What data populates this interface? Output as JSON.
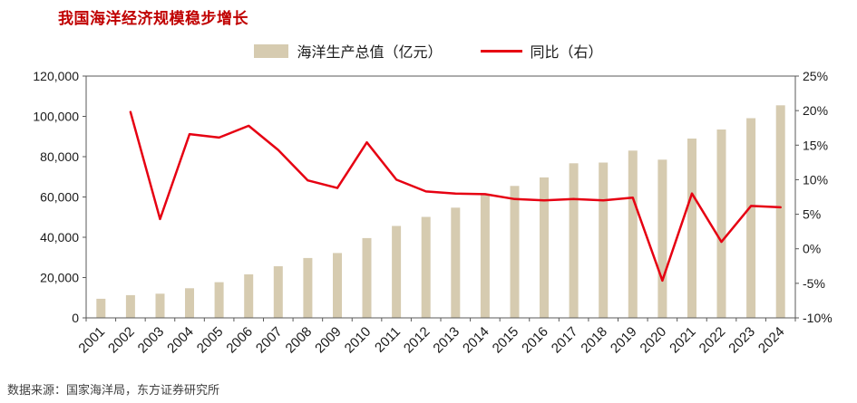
{
  "title": "我国海洋经济规模稳步增长",
  "source": "数据来源：国家海洋局，东方证券研究所",
  "colors": {
    "bar": "#d6cbb0",
    "line": "#e60012",
    "title": "#c00000",
    "axis_line": "#595959",
    "axis_text": "#1a1a1a"
  },
  "legend": [
    {
      "label": "海洋生产总值（亿元）",
      "type": "bar"
    },
    {
      "label": "同比（右）",
      "type": "line"
    }
  ],
  "chart_data": {
    "type": "bar+line",
    "title": "我国海洋经济规模稳步增长",
    "categories": [
      "2001",
      "2002",
      "2003",
      "2004",
      "2005",
      "2006",
      "2007",
      "2008",
      "2009",
      "2010",
      "2011",
      "2012",
      "2013",
      "2014",
      "2015",
      "2016",
      "2017",
      "2018",
      "2019",
      "2020",
      "2021",
      "2022",
      "2023",
      "2024"
    ],
    "series": [
      {
        "name": "海洋生产总值（亿元）",
        "type": "bar",
        "axis": "left",
        "values": [
          9500,
          11300,
          12000,
          14700,
          17700,
          21600,
          25600,
          29700,
          32200,
          39600,
          45600,
          50100,
          54700,
          61000,
          65500,
          69700,
          76700,
          77100,
          83000,
          78500,
          89000,
          93500,
          99100,
          105500
        ]
      },
      {
        "name": "同比（右）",
        "type": "line",
        "axis": "right",
        "values": [
          null,
          19.8,
          4.3,
          16.6,
          16.1,
          17.8,
          14.3,
          9.9,
          8.8,
          15.4,
          10.0,
          8.3,
          8.0,
          7.9,
          7.2,
          7.0,
          7.2,
          7.0,
          7.4,
          -4.6,
          8.0,
          1.0,
          6.2,
          6.0
        ]
      }
    ],
    "left_axis": {
      "min": 0,
      "max": 120000,
      "tick_values": [
        0,
        20000,
        40000,
        60000,
        80000,
        100000,
        120000
      ],
      "tick_labels": [
        "0",
        "20,000",
        "40,000",
        "60,000",
        "80,000",
        "100,000",
        "120,000"
      ]
    },
    "right_axis": {
      "min": -10,
      "max": 25,
      "tick_values": [
        -10,
        -5,
        0,
        5,
        10,
        15,
        20,
        25
      ],
      "tick_labels": [
        "-10%",
        "-5%",
        "0%",
        "5%",
        "10%",
        "15%",
        "20%",
        "25%"
      ]
    },
    "legend_position": "top",
    "grid": false
  }
}
